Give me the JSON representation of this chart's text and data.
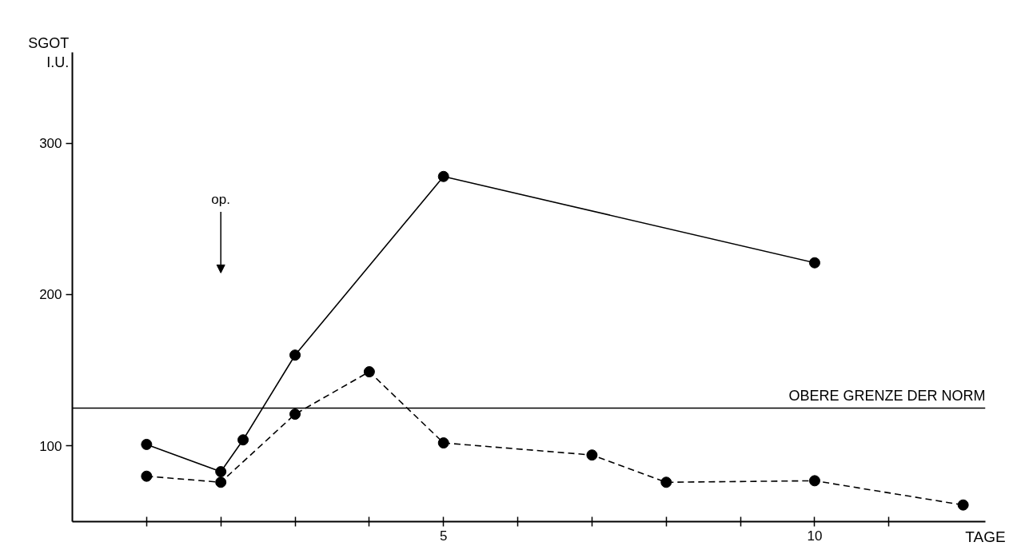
{
  "chart_data": {
    "type": "line",
    "xlabel": "TAGE",
    "ylabel": "SGOT\nI.U.",
    "xlim": [
      0,
      12.3
    ],
    "ylim": [
      50,
      360
    ],
    "xticks": [
      {
        "value": 1,
        "label": null
      },
      {
        "value": 2,
        "label": null
      },
      {
        "value": 3,
        "label": null
      },
      {
        "value": 4,
        "label": null
      },
      5,
      {
        "value": 6,
        "label": null
      },
      {
        "value": 7,
        "label": null
      },
      {
        "value": 8,
        "label": null
      },
      {
        "value": 9,
        "label": null
      },
      10,
      {
        "value": 11,
        "label": null
      }
    ],
    "yticks": [
      100,
      200,
      300
    ],
    "series": [
      {
        "color": "#000000",
        "line_style": "solid",
        "x": [
          1,
          2,
          2.3,
          3,
          5,
          10
        ],
        "values": [
          101,
          83,
          104,
          160,
          278,
          221
        ]
      },
      {
        "color": "#000000",
        "line_style": "dashed",
        "x": [
          1,
          2,
          3,
          4,
          5,
          7,
          8,
          10,
          12
        ],
        "values": [
          80,
          76,
          121,
          149,
          102,
          94,
          76,
          77,
          61
        ]
      }
    ],
    "marker": "circle",
    "grid": false,
    "ref_lines": [
      {
        "axis": "y",
        "value": 125,
        "label": "OBERE GRENZE DER NORM",
        "color": "#000000"
      }
    ],
    "annotations": [
      "op."
    ]
  }
}
